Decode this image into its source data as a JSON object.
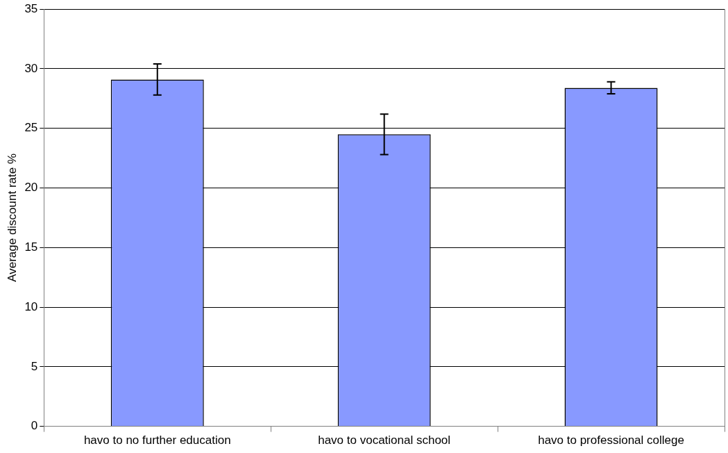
{
  "chart_data": {
    "type": "bar",
    "ylabel": "Average discount rate %",
    "categories": [
      "havo to no further education",
      "havo to vocational school",
      "havo to professional college"
    ],
    "values": [
      29.1,
      24.5,
      28.4
    ],
    "errors": [
      1.3,
      1.7,
      0.5
    ],
    "color": "#8899ff",
    "ylim": [
      0,
      35
    ],
    "yticks": [
      0,
      5,
      10,
      15,
      20,
      25,
      30,
      35
    ],
    "grid": "y",
    "legend": false
  }
}
